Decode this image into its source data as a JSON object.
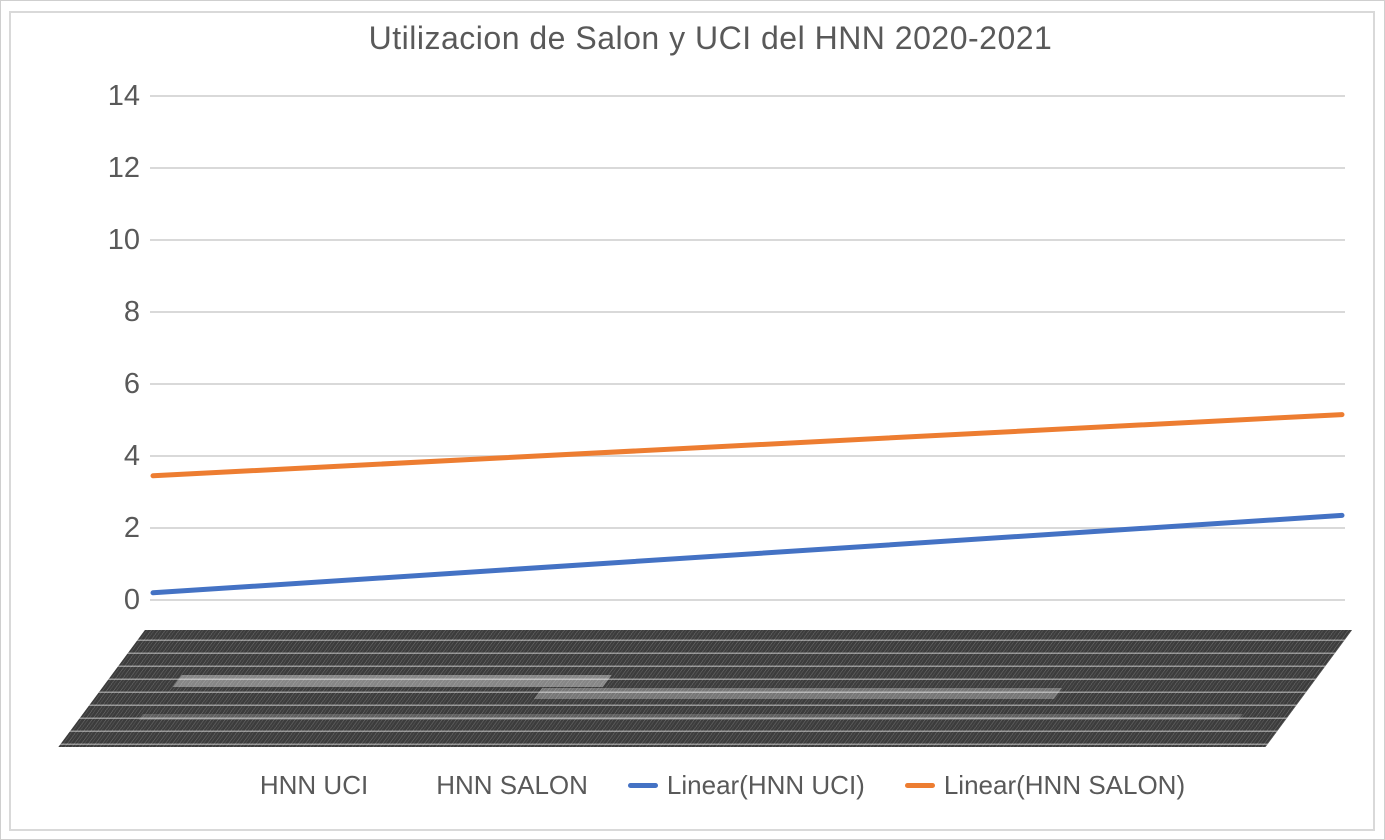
{
  "frame": {
    "background": "#ffffff",
    "outer_border_color": "#cfcfcf",
    "chart_border_color": "#d9d9d9"
  },
  "chart_data": {
    "type": "line",
    "title": "Utilizacion de Salon y UCI del HNN 2020-2021",
    "title_color": "#595959",
    "text_color": "#595959",
    "gridline_color": "#d9d9d9",
    "grid": true,
    "y_axis": {
      "min": 0,
      "max": 14,
      "tick_step": 2,
      "ticks": [
        14,
        12,
        10,
        8,
        6,
        4,
        2,
        0
      ]
    },
    "x_axis": {
      "tick_labels_legible": false,
      "appearance": "hundreds of overlapping rotated category labels forming a dark slanted band"
    },
    "series": [
      {
        "name": "HNN UCI",
        "type": "data-series",
        "plotted_points_visible": false
      },
      {
        "name": "HNN SALON",
        "type": "data-series",
        "plotted_points_visible": false
      },
      {
        "name": "Linear(HNN UCI)",
        "type": "trendline",
        "color": "#4472c4",
        "start_value": 0.2,
        "end_value": 2.35
      },
      {
        "name": "Linear(HNN SALON)",
        "type": "trendline",
        "color": "#ed7d31",
        "start_value": 3.45,
        "end_value": 5.15
      }
    ],
    "legend": {
      "position": "bottom",
      "entries": [
        {
          "label": "HNN UCI",
          "marker": "none"
        },
        {
          "label": "HNN SALON",
          "marker": "none"
        },
        {
          "label": "Linear(HNN UCI)",
          "marker": "line",
          "color": "#4472c4"
        },
        {
          "label": "Linear(HNN SALON)",
          "marker": "line",
          "color": "#ed7d31"
        }
      ]
    }
  }
}
